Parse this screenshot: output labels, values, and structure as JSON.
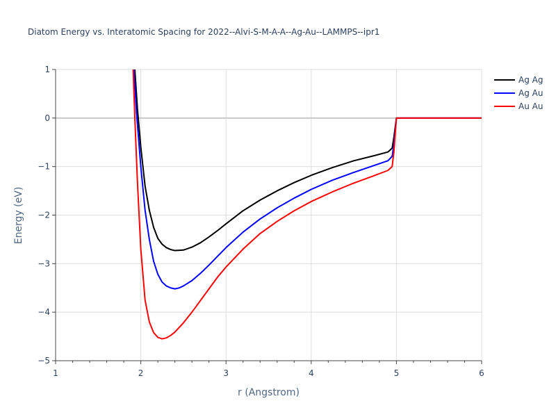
{
  "chart_data": {
    "type": "line",
    "title": "Diatom Energy vs. Interatomic Spacing for 2022--Alvi-S-M-A-A--Ag-Au--LAMMPS--ipr1",
    "xlabel": "r (Angstrom)",
    "ylabel": "Energy (eV)",
    "xlim": [
      1,
      6
    ],
    "ylim": [
      -5,
      1
    ],
    "xticks": [
      1,
      2,
      3,
      4,
      5,
      6
    ],
    "yticks": [
      1,
      0,
      -1,
      -2,
      -3,
      -4,
      -5
    ],
    "xtick_labels": [
      "1",
      "2",
      "3",
      "4",
      "5",
      "6"
    ],
    "ytick_labels": [
      "1",
      "0",
      "−1",
      "−2",
      "−3",
      "−4",
      "−5"
    ],
    "grid": true,
    "legend_position": "top-right",
    "series": [
      {
        "name": "Ag Ag",
        "color": "#000000",
        "points": [
          [
            1.93,
            1.0
          ],
          [
            1.96,
            0.2
          ],
          [
            2.0,
            -0.6
          ],
          [
            2.05,
            -1.4
          ],
          [
            2.1,
            -1.9
          ],
          [
            2.15,
            -2.25
          ],
          [
            2.2,
            -2.48
          ],
          [
            2.25,
            -2.6
          ],
          [
            2.3,
            -2.67
          ],
          [
            2.35,
            -2.71
          ],
          [
            2.4,
            -2.73
          ],
          [
            2.5,
            -2.72
          ],
          [
            2.6,
            -2.66
          ],
          [
            2.7,
            -2.57
          ],
          [
            2.8,
            -2.45
          ],
          [
            2.9,
            -2.32
          ],
          [
            3.0,
            -2.18
          ],
          [
            3.2,
            -1.91
          ],
          [
            3.4,
            -1.69
          ],
          [
            3.6,
            -1.5
          ],
          [
            3.8,
            -1.33
          ],
          [
            4.0,
            -1.18
          ],
          [
            4.25,
            -1.02
          ],
          [
            4.5,
            -0.88
          ],
          [
            4.75,
            -0.77
          ],
          [
            4.9,
            -0.7
          ],
          [
            4.95,
            -0.62
          ],
          [
            4.97,
            -0.4
          ],
          [
            5.0,
            0.0
          ],
          [
            6.0,
            0.0
          ]
        ]
      },
      {
        "name": "Ag Au",
        "color": "#0000ff",
        "points": [
          [
            1.92,
            1.0
          ],
          [
            1.95,
            0.1
          ],
          [
            2.0,
            -1.0
          ],
          [
            2.05,
            -1.9
          ],
          [
            2.1,
            -2.5
          ],
          [
            2.15,
            -2.95
          ],
          [
            2.2,
            -3.22
          ],
          [
            2.25,
            -3.38
          ],
          [
            2.3,
            -3.46
          ],
          [
            2.35,
            -3.5
          ],
          [
            2.4,
            -3.52
          ],
          [
            2.45,
            -3.5
          ],
          [
            2.5,
            -3.46
          ],
          [
            2.6,
            -3.35
          ],
          [
            2.7,
            -3.2
          ],
          [
            2.8,
            -3.03
          ],
          [
            2.9,
            -2.85
          ],
          [
            3.0,
            -2.67
          ],
          [
            3.2,
            -2.35
          ],
          [
            3.4,
            -2.08
          ],
          [
            3.6,
            -1.85
          ],
          [
            3.8,
            -1.65
          ],
          [
            4.0,
            -1.47
          ],
          [
            4.25,
            -1.28
          ],
          [
            4.5,
            -1.12
          ],
          [
            4.75,
            -0.97
          ],
          [
            4.9,
            -0.88
          ],
          [
            4.95,
            -0.79
          ],
          [
            4.97,
            -0.55
          ],
          [
            5.0,
            0.0
          ],
          [
            6.0,
            0.0
          ]
        ]
      },
      {
        "name": "Au Au",
        "color": "#ff0000",
        "points": [
          [
            1.91,
            1.0
          ],
          [
            1.93,
            0.0
          ],
          [
            1.96,
            -1.3
          ],
          [
            2.0,
            -2.7
          ],
          [
            2.05,
            -3.75
          ],
          [
            2.1,
            -4.2
          ],
          [
            2.15,
            -4.42
          ],
          [
            2.2,
            -4.52
          ],
          [
            2.25,
            -4.55
          ],
          [
            2.3,
            -4.53
          ],
          [
            2.35,
            -4.48
          ],
          [
            2.4,
            -4.41
          ],
          [
            2.5,
            -4.22
          ],
          [
            2.6,
            -4.0
          ],
          [
            2.7,
            -3.76
          ],
          [
            2.8,
            -3.52
          ],
          [
            2.9,
            -3.28
          ],
          [
            3.0,
            -3.07
          ],
          [
            3.2,
            -2.7
          ],
          [
            3.4,
            -2.38
          ],
          [
            3.6,
            -2.13
          ],
          [
            3.8,
            -1.91
          ],
          [
            4.0,
            -1.72
          ],
          [
            4.25,
            -1.52
          ],
          [
            4.5,
            -1.34
          ],
          [
            4.75,
            -1.18
          ],
          [
            4.9,
            -1.08
          ],
          [
            4.95,
            -1.0
          ],
          [
            4.97,
            -0.7
          ],
          [
            5.0,
            0.0
          ],
          [
            6.0,
            0.0
          ]
        ]
      }
    ]
  }
}
